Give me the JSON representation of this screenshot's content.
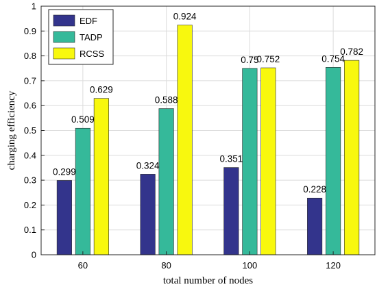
{
  "chart_data": {
    "type": "bar",
    "categories": [
      "60",
      "80",
      "100",
      "120"
    ],
    "series": [
      {
        "name": "EDF",
        "values": [
          0.299,
          0.324,
          0.351,
          0.228
        ],
        "labels": [
          "0.299",
          "0.324",
          "0.351",
          "0.228"
        ],
        "color": "#33348c"
      },
      {
        "name": "TADP",
        "values": [
          0.509,
          0.588,
          0.75,
          0.754
        ],
        "labels": [
          "0.509",
          "0.588",
          "0.75",
          "0.754"
        ],
        "color": "#35b99a"
      },
      {
        "name": "RCSS",
        "values": [
          0.629,
          0.924,
          0.752,
          0.782
        ],
        "labels": [
          "0.629",
          "0.924",
          "0.752",
          "0.782"
        ],
        "color": "#f8f80e"
      }
    ],
    "xlabel": "total number of nodes",
    "ylabel": "charging efficiency",
    "ylim": [
      0,
      1
    ],
    "yticks": [
      "0",
      "0.1",
      "0.2",
      "0.3",
      "0.4",
      "0.5",
      "0.6",
      "0.7",
      "0.8",
      "0.9",
      "1"
    ],
    "grid": true,
    "legend_position": "top-left"
  }
}
